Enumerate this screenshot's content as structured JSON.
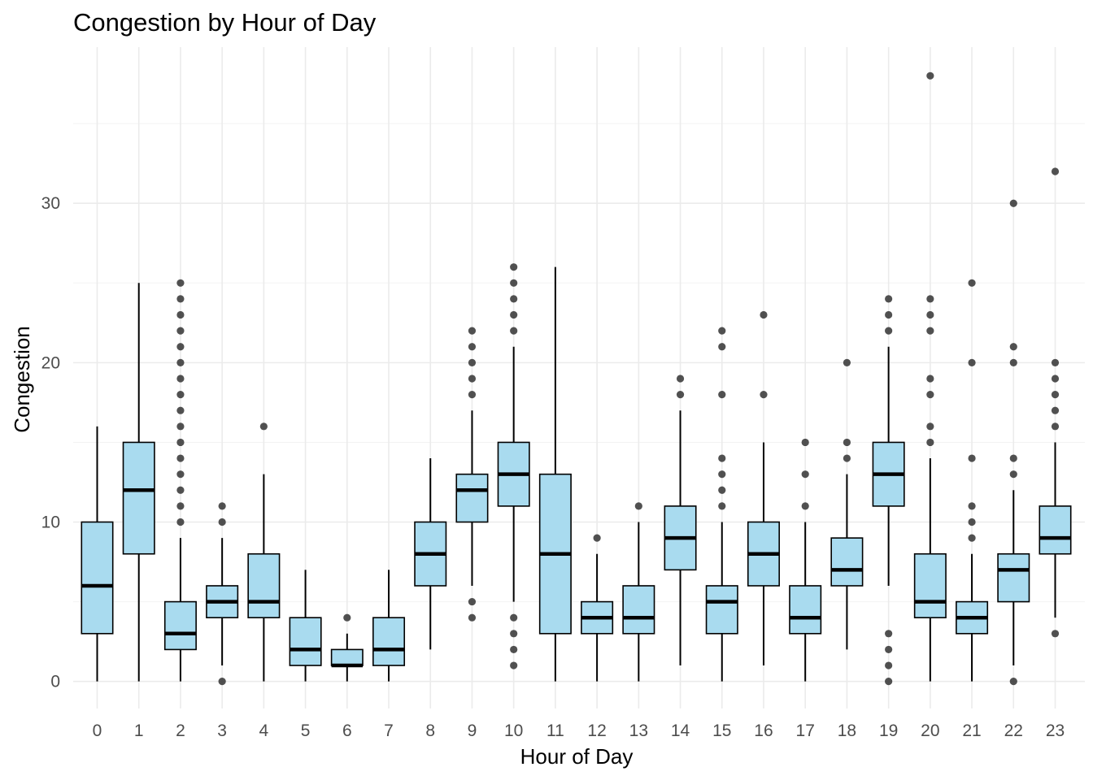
{
  "chart_data": {
    "type": "boxplot",
    "title": "Congestion by Hour of Day",
    "xlabel": "Hour of Day",
    "ylabel": "Congestion",
    "categories": [
      "0",
      "1",
      "2",
      "3",
      "4",
      "5",
      "6",
      "7",
      "8",
      "9",
      "10",
      "11",
      "12",
      "13",
      "14",
      "15",
      "16",
      "17",
      "18",
      "19",
      "20",
      "21",
      "22",
      "23"
    ],
    "ylim": [
      -1.7,
      39.8
    ],
    "yticks": [
      0,
      10,
      20,
      30
    ],
    "grid": true,
    "colors": {
      "box_fill": "#a9dbef",
      "box_stroke": "#000000",
      "median": "#000000",
      "outlier": "#333333",
      "grid": "#ebebeb"
    },
    "boxes": [
      {
        "category": "0",
        "min": 0,
        "q1": 3,
        "median": 6,
        "q3": 10,
        "max": 16,
        "outliers": []
      },
      {
        "category": "1",
        "min": 0,
        "q1": 8,
        "median": 12,
        "q3": 15,
        "max": 25,
        "outliers": []
      },
      {
        "category": "2",
        "min": 0,
        "q1": 2,
        "median": 3,
        "q3": 5,
        "max": 9,
        "outliers": [
          10,
          11,
          12,
          13,
          14,
          15,
          16,
          17,
          18,
          19,
          20,
          21,
          22,
          23,
          24,
          25
        ]
      },
      {
        "category": "3",
        "min": 1,
        "q1": 4,
        "median": 5,
        "q3": 6,
        "max": 9,
        "outliers": [
          0,
          10,
          11
        ]
      },
      {
        "category": "4",
        "min": 0,
        "q1": 4,
        "median": 5,
        "q3": 8,
        "max": 13,
        "outliers": [
          16
        ]
      },
      {
        "category": "5",
        "min": 0,
        "q1": 1,
        "median": 2,
        "q3": 4,
        "max": 7,
        "outliers": []
      },
      {
        "category": "6",
        "min": 0,
        "q1": 1,
        "median": 1,
        "q3": 2,
        "max": 3,
        "outliers": [
          4
        ]
      },
      {
        "category": "7",
        "min": 0,
        "q1": 1,
        "median": 2,
        "q3": 4,
        "max": 7,
        "outliers": []
      },
      {
        "category": "8",
        "min": 2,
        "q1": 6,
        "median": 8,
        "q3": 10,
        "max": 14,
        "outliers": []
      },
      {
        "category": "9",
        "min": 6,
        "q1": 10,
        "median": 12,
        "q3": 13,
        "max": 17,
        "outliers": [
          4,
          5,
          18,
          19,
          20,
          21,
          22
        ]
      },
      {
        "category": "10",
        "min": 5,
        "q1": 11,
        "median": 13,
        "q3": 15,
        "max": 21,
        "outliers": [
          1,
          2,
          3,
          4,
          22,
          23,
          24,
          25,
          26
        ]
      },
      {
        "category": "11",
        "min": 0,
        "q1": 3,
        "median": 8,
        "q3": 13,
        "max": 26,
        "outliers": []
      },
      {
        "category": "12",
        "min": 0,
        "q1": 3,
        "median": 4,
        "q3": 5,
        "max": 8,
        "outliers": [
          9
        ]
      },
      {
        "category": "13",
        "min": 0,
        "q1": 3,
        "median": 4,
        "q3": 6,
        "max": 10,
        "outliers": [
          11
        ]
      },
      {
        "category": "14",
        "min": 1,
        "q1": 7,
        "median": 9,
        "q3": 11,
        "max": 17,
        "outliers": [
          18,
          19
        ]
      },
      {
        "category": "15",
        "min": 0,
        "q1": 3,
        "median": 5,
        "q3": 6,
        "max": 10,
        "outliers": [
          11,
          12,
          13,
          14,
          18,
          21,
          22
        ]
      },
      {
        "category": "16",
        "min": 1,
        "q1": 6,
        "median": 8,
        "q3": 10,
        "max": 15,
        "outliers": [
          18,
          23
        ]
      },
      {
        "category": "17",
        "min": 0,
        "q1": 3,
        "median": 4,
        "q3": 6,
        "max": 10,
        "outliers": [
          11,
          13,
          15
        ]
      },
      {
        "category": "18",
        "min": 2,
        "q1": 6,
        "median": 7,
        "q3": 9,
        "max": 13,
        "outliers": [
          14,
          15,
          20
        ]
      },
      {
        "category": "19",
        "min": 6,
        "q1": 11,
        "median": 13,
        "q3": 15,
        "max": 21,
        "outliers": [
          0,
          1,
          2,
          3,
          22,
          23,
          24
        ]
      },
      {
        "category": "20",
        "min": 0,
        "q1": 4,
        "median": 5,
        "q3": 8,
        "max": 14,
        "outliers": [
          15,
          16,
          18,
          19,
          22,
          23,
          24,
          38
        ]
      },
      {
        "category": "21",
        "min": 0,
        "q1": 3,
        "median": 4,
        "q3": 5,
        "max": 8,
        "outliers": [
          9,
          10,
          11,
          14,
          20,
          25
        ]
      },
      {
        "category": "22",
        "min": 1,
        "q1": 5,
        "median": 7,
        "q3": 8,
        "max": 12,
        "outliers": [
          0,
          13,
          14,
          20,
          21,
          30
        ]
      },
      {
        "category": "23",
        "min": 4,
        "q1": 8,
        "median": 9,
        "q3": 11,
        "max": 15,
        "outliers": [
          3,
          16,
          17,
          18,
          19,
          20,
          32
        ]
      }
    ]
  }
}
